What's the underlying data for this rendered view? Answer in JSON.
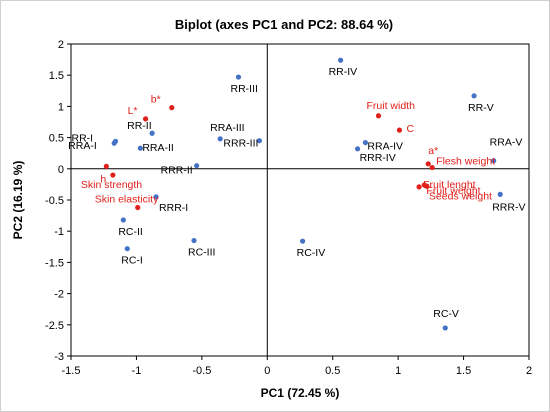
{
  "chart_data": {
    "type": "scatter",
    "title": "Biplot (axes PC1 and PC2: 88.64 %)",
    "xlabel": "PC1 (72.45 %)",
    "ylabel": "PC2 (16.19 %)",
    "xlim": [
      -1.5,
      2
    ],
    "ylim": [
      -3,
      2
    ],
    "xticks": [
      -1.5,
      -1,
      -0.5,
      0,
      0.5,
      1,
      1.5,
      2
    ],
    "yticks": [
      -3,
      -2.5,
      -2,
      -1.5,
      -1,
      -0.5,
      0,
      0.5,
      1,
      1.5,
      2
    ],
    "grid": false,
    "legend": "none",
    "colors": {
      "observations": "#4472C4",
      "variables": "#E0201B",
      "text": "#000000"
    },
    "series": [
      {
        "kind": "observations",
        "points": [
          {
            "label": "RR-I",
            "x": -1.16,
            "y": 0.44
          },
          {
            "label": "RRA-I",
            "x": -1.17,
            "y": 0.41
          },
          {
            "label": "RR-II",
            "x": -0.88,
            "y": 0.57
          },
          {
            "label": "RRA-II",
            "x": -0.97,
            "y": 0.33
          },
          {
            "label": "RC-II",
            "x": -1.1,
            "y": -0.82
          },
          {
            "label": "RC-I",
            "x": -1.07,
            "y": -1.28
          },
          {
            "label": "RRR-I",
            "x": -0.85,
            "y": -0.45
          },
          {
            "label": "RC-III",
            "x": -0.56,
            "y": -1.15
          },
          {
            "label": "RR-III",
            "x": -0.22,
            "y": 1.47
          },
          {
            "label": "RRA-III",
            "x": -0.36,
            "y": 0.48
          },
          {
            "label": "RRR-III",
            "x": -0.06,
            "y": 0.45
          },
          {
            "label": "RRR-II",
            "x": -0.54,
            "y": 0.05
          },
          {
            "label": "RC-IV",
            "x": 0.27,
            "y": -1.16
          },
          {
            "label": "RR-IV",
            "x": 0.56,
            "y": 1.74
          },
          {
            "label": "RRA-IV",
            "x": 0.75,
            "y": 0.42
          },
          {
            "label": "RRR-IV",
            "x": 0.69,
            "y": 0.32
          },
          {
            "label": "RR-V",
            "x": 1.58,
            "y": 1.17
          },
          {
            "label": "RRA-V",
            "x": 1.73,
            "y": 0.13
          },
          {
            "label": "RRR-V",
            "x": 1.78,
            "y": -0.41
          },
          {
            "label": "RC-V",
            "x": 1.36,
            "y": -2.55
          }
        ]
      },
      {
        "kind": "variables",
        "points": [
          {
            "label": "L*",
            "x": -0.93,
            "y": 0.8
          },
          {
            "label": "b*",
            "x": -0.73,
            "y": 0.98
          },
          {
            "label": "h",
            "x": -1.23,
            "y": 0.04
          },
          {
            "label": "Skin strength",
            "x": -1.18,
            "y": -0.1
          },
          {
            "label": "Skin elasticity",
            "x": -0.99,
            "y": -0.62
          },
          {
            "label": "Fruit width",
            "x": 0.85,
            "y": 0.85
          },
          {
            "label": "C",
            "x": 1.01,
            "y": 0.62
          },
          {
            "label": "a*",
            "x": 1.23,
            "y": 0.08
          },
          {
            "label": "Flesh weight",
            "x": 1.26,
            "y": 0.02
          },
          {
            "label": "Fruit weight",
            "x": 1.2,
            "y": -0.26
          },
          {
            "label": "Fruit lenght",
            "x": 1.16,
            "y": -0.29
          },
          {
            "label": "Seeds weight",
            "x": 1.22,
            "y": -0.28
          }
        ]
      }
    ]
  }
}
